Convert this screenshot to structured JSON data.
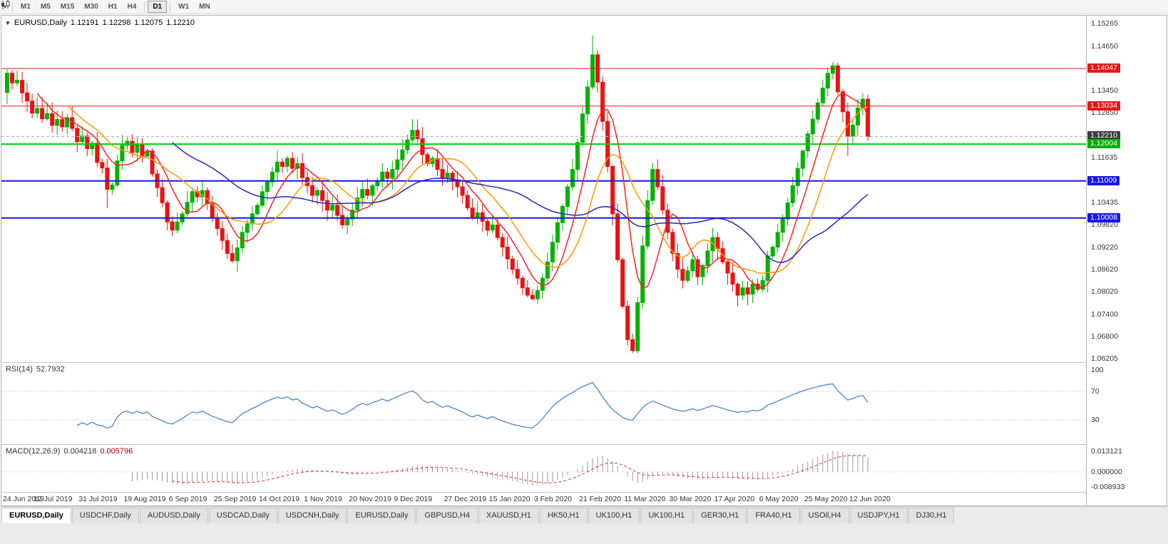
{
  "toolbar": {
    "chart_type_icon": "candlestick-chart-icon",
    "timeframes": [
      "M1",
      "M5",
      "M15",
      "M30",
      "H1",
      "H4",
      "D1",
      "W1",
      "MN"
    ],
    "active_timeframe": "D1",
    "separators_after": [
      "H4",
      "D1"
    ]
  },
  "chart_data": {
    "type": "candlestick",
    "symbol": "EURUSD",
    "timeframe": "Daily",
    "title": "EURUSD,Daily",
    "ohlc_display": {
      "open": "1.12191",
      "high": "1.12298",
      "low": "1.12075",
      "close": "1.12210"
    },
    "y_axis": {
      "min": 1.06205,
      "max": 1.15265,
      "ticks": [
        1.15265,
        1.1465,
        1.1345,
        1.1285,
        1.11635,
        1.10435,
        1.0982,
        1.0922,
        1.0862,
        1.0802,
        1.074,
        1.068,
        1.06205
      ]
    },
    "x_labels": [
      "24 Jun 2019",
      "12 Jul 2019",
      "31 Jul 2019",
      "19 Aug 2019",
      "6 Sep 2019",
      "25 Sep 2019",
      "14 Oct 2019",
      "1 Nov 2019",
      "20 Nov 2019",
      "9 Dec 2019",
      "27 Dec 2019",
      "15 Jan 2020",
      "3 Feb 2020",
      "21 Feb 2020",
      "11 Mar 2020",
      "30 Mar 2020",
      "17 Apr 2020",
      "6 May 2020",
      "25 May 2020",
      "12 Jun 2020"
    ],
    "levels": [
      {
        "value": 1.14047,
        "label": "1.14047",
        "color": "#e81717",
        "badge": "#e81717",
        "width": 1,
        "style": "solid",
        "name": "resistance-line-1"
      },
      {
        "value": 1.13034,
        "label": "1.13034",
        "color": "#e81717",
        "badge": "#e81717",
        "width": 1,
        "style": "solid",
        "name": "resistance-line-2"
      },
      {
        "value": 1.1221,
        "label": "1.12210",
        "color": "#b0b0b0",
        "badge": "#3d3d3d",
        "width": 1,
        "style": "dashed",
        "name": "current-price-line"
      },
      {
        "value": 1.12004,
        "label": "1.12004",
        "color": "#00cc00",
        "badge": "#00b000",
        "width": 2,
        "style": "solid",
        "name": "support-line-green"
      },
      {
        "value": 1.11009,
        "label": "1.11009",
        "color": "#1717e8",
        "badge": "#1717e8",
        "width": 2,
        "style": "solid",
        "name": "support-line-blue-1"
      },
      {
        "value": 1.10008,
        "label": "1.10008",
        "color": "#1717e8",
        "badge": "#1717e8",
        "width": 2,
        "style": "solid",
        "name": "support-line-blue-2"
      }
    ],
    "moving_averages": [
      {
        "period": 7,
        "color": "#ff2020",
        "name": "ma-fast"
      },
      {
        "period": 13,
        "color": "#ff9900",
        "name": "ma-mid"
      },
      {
        "period": 34,
        "color": "#2525d0",
        "name": "ma-slow"
      }
    ],
    "colors": {
      "up": "#00b300",
      "down": "#ee1111"
    },
    "first_open": 1.134,
    "closes": [
      1.1392,
      1.1366,
      1.1373,
      1.1339,
      1.1317,
      1.1284,
      1.1297,
      1.1269,
      1.1283,
      1.1251,
      1.1267,
      1.1247,
      1.1272,
      1.1243,
      1.1207,
      1.1222,
      1.1188,
      1.1203,
      1.1151,
      1.1136,
      1.1078,
      1.109,
      1.1155,
      1.1197,
      1.1208,
      1.1178,
      1.1198,
      1.1168,
      1.1182,
      1.112,
      1.1083,
      1.1042,
      1.099,
      1.0968,
      1.099,
      1.1012,
      1.1043,
      1.1072,
      1.1058,
      1.1075,
      1.104,
      1.1002,
      1.0972,
      1.094,
      1.0905,
      1.0885,
      1.092,
      1.0962,
      1.0985,
      1.1012,
      1.1035,
      1.1072,
      1.1098,
      1.1125,
      1.1152,
      1.114,
      1.1162,
      1.1135,
      1.1148,
      1.111,
      1.1088,
      1.1062,
      1.1075,
      1.1048,
      1.1022,
      1.1035,
      1.1008,
      1.0982,
      1.0998,
      1.1022,
      1.1055,
      1.1078,
      1.1062,
      1.1088,
      1.1102,
      1.1125,
      1.1108,
      1.1132,
      1.1158,
      1.1185,
      1.1212,
      1.1238,
      1.1215,
      1.1172,
      1.1148,
      1.1162,
      1.1132,
      1.1108,
      1.1122,
      1.1102,
      1.1085,
      1.1062,
      1.1028,
      1.1002,
      1.1015,
      1.0992,
      1.0968,
      1.0982,
      1.0948,
      1.0922,
      1.089,
      1.0862,
      1.0838,
      1.0812,
      1.0792,
      1.0782,
      1.0805,
      1.0838,
      1.0882,
      1.0935,
      1.0988,
      1.1032,
      1.1085,
      1.1132,
      1.1205,
      1.1282,
      1.1355,
      1.1442,
      1.1368,
      1.1262,
      1.114,
      1.1012,
      1.0888,
      1.0762,
      1.0672,
      1.0642,
      1.0772,
      1.0925,
      1.1048,
      1.1132,
      1.1085,
      1.1022,
      1.0962,
      1.0905,
      1.0862,
      1.0832,
      1.0858,
      1.0888,
      1.0842,
      1.0872,
      1.0912,
      1.0948,
      1.0918,
      1.0882,
      1.0852,
      1.0822,
      1.0792,
      1.0812,
      1.0795,
      1.0822,
      1.0808,
      1.0832,
      1.0898,
      1.0922,
      1.0962,
      1.0998,
      1.1042,
      1.1088,
      1.1135,
      1.1182,
      1.1228,
      1.1268,
      1.1312,
      1.1352,
      1.1392,
      1.1412,
      1.1342,
      1.1288,
      1.1222,
      1.1252,
      1.1298,
      1.1322,
      1.1221
    ],
    "extremes": {
      "0": {
        "high": 1.1403
      },
      "20": {
        "low": 1.1027
      },
      "45": {
        "low": 1.0879
      },
      "105": {
        "low": 1.0778
      },
      "117": {
        "high": 1.1495
      },
      "125": {
        "low": 1.0636
      },
      "165": {
        "high": 1.1422
      },
      "168": {
        "low": 1.1168
      }
    }
  },
  "rsi": {
    "label": "RSI(14)",
    "display_value": "52.7932",
    "period": 14,
    "levels": [
      100,
      70,
      30
    ],
    "line_color": "#4a86c8"
  },
  "macd": {
    "label": "MACD(12,26,9)",
    "display_main": "0.004218",
    "display_signal": "0.005796",
    "fast": 12,
    "slow": 26,
    "signal": 9,
    "ticks": [
      "0.013121",
      "0.000000",
      "-0.008933"
    ],
    "hist_color": "#9a9a9a",
    "signal_color": "#e03030"
  },
  "tabs": {
    "active": 0,
    "items": [
      "EURUSD,Daily",
      "USDCHF,Daily",
      "AUDUSD,Daily",
      "USDCAD,Daily",
      "USDCNH,Daily",
      "EURUSD,Daily",
      "GBPUSD,H4",
      "XAUUSD,H1",
      "HK50,H1",
      "UK100,H1",
      "UK100,H1",
      "GER30,H1",
      "FRA40,H1",
      "USOil,H4",
      "USDJPY,H1",
      "DJ30,H1"
    ]
  }
}
